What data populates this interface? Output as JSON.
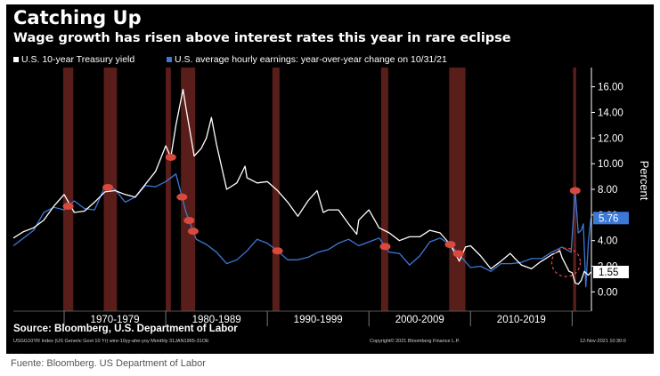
{
  "chart_data": {
    "type": "line",
    "title": "Catching Up",
    "subtitle": "Wage growth has risen above interest rates this year in rare eclipse",
    "ylabel": "Percent",
    "xlabel": "",
    "ylim": [
      -1.5,
      17.5
    ],
    "xlim": [
      1965.0,
      2021.9
    ],
    "y_ticks": [
      "16.00",
      "14.00",
      "12.00",
      "10.00",
      "8.00",
      "6.00",
      "4.00",
      "2.00",
      "0.00"
    ],
    "x_decade_labels": [
      "1970-1979",
      "1980-1989",
      "1990-1999",
      "2000-2009",
      "2010-2019"
    ],
    "grid": false,
    "legend_position": "top-left",
    "series": [
      {
        "name": "U.S. 10-year Treasury yield",
        "color": "#ffffff",
        "last_value_label": "1.55",
        "points": [
          [
            1965.0,
            4.2
          ],
          [
            1966.0,
            4.7
          ],
          [
            1967.0,
            5.0
          ],
          [
            1968.0,
            5.6
          ],
          [
            1969.0,
            6.7
          ],
          [
            1970.0,
            7.6
          ],
          [
            1971.0,
            6.2
          ],
          [
            1972.0,
            6.3
          ],
          [
            1973.0,
            7.0
          ],
          [
            1974.0,
            7.8
          ],
          [
            1975.0,
            7.9
          ],
          [
            1976.0,
            7.6
          ],
          [
            1977.0,
            7.4
          ],
          [
            1978.0,
            8.4
          ],
          [
            1979.0,
            9.4
          ],
          [
            1980.0,
            11.4
          ],
          [
            1980.5,
            10.5
          ],
          [
            1981.0,
            13.0
          ],
          [
            1981.7,
            15.8
          ],
          [
            1982.0,
            14.3
          ],
          [
            1982.8,
            10.6
          ],
          [
            1983.5,
            11.2
          ],
          [
            1984.0,
            12.0
          ],
          [
            1984.5,
            13.6
          ],
          [
            1985.0,
            11.5
          ],
          [
            1986.0,
            8.0
          ],
          [
            1987.0,
            8.5
          ],
          [
            1987.8,
            9.8
          ],
          [
            1988.0,
            8.9
          ],
          [
            1989.0,
            8.5
          ],
          [
            1990.0,
            8.6
          ],
          [
            1991.0,
            7.9
          ],
          [
            1992.0,
            7.0
          ],
          [
            1993.0,
            5.9
          ],
          [
            1994.0,
            7.1
          ],
          [
            1994.9,
            7.9
          ],
          [
            1995.5,
            6.2
          ],
          [
            1996.0,
            6.4
          ],
          [
            1997.0,
            6.4
          ],
          [
            1998.0,
            5.3
          ],
          [
            1998.8,
            4.5
          ],
          [
            1999.0,
            5.6
          ],
          [
            2000.0,
            6.4
          ],
          [
            2001.0,
            5.0
          ],
          [
            2002.0,
            4.6
          ],
          [
            2003.0,
            4.0
          ],
          [
            2004.0,
            4.3
          ],
          [
            2005.0,
            4.3
          ],
          [
            2006.0,
            4.8
          ],
          [
            2007.0,
            4.6
          ],
          [
            2008.0,
            3.7
          ],
          [
            2008.9,
            2.4
          ],
          [
            2009.5,
            3.5
          ],
          [
            2010.0,
            3.6
          ],
          [
            2011.0,
            2.8
          ],
          [
            2012.0,
            1.8
          ],
          [
            2013.0,
            2.4
          ],
          [
            2013.9,
            3.0
          ],
          [
            2014.5,
            2.5
          ],
          [
            2015.0,
            2.1
          ],
          [
            2016.0,
            1.8
          ],
          [
            2016.8,
            2.3
          ],
          [
            2017.0,
            2.4
          ],
          [
            2018.0,
            2.9
          ],
          [
            2018.8,
            3.2
          ],
          [
            2019.0,
            2.7
          ],
          [
            2019.7,
            1.6
          ],
          [
            2020.0,
            1.5
          ],
          [
            2020.3,
            0.7
          ],
          [
            2020.6,
            0.6
          ],
          [
            2020.9,
            0.9
          ],
          [
            2021.2,
            1.6
          ],
          [
            2021.6,
            1.3
          ],
          [
            2021.86,
            1.55
          ]
        ]
      },
      {
        "name": "U.S. average hourly earnings: year-over-year change on 10/31/21",
        "color": "#3c78d8",
        "last_value_label": "5.76",
        "points": [
          [
            1965.0,
            3.6
          ],
          [
            1966.0,
            4.2
          ],
          [
            1967.0,
            4.8
          ],
          [
            1968.0,
            6.2
          ],
          [
            1969.0,
            6.6
          ],
          [
            1970.0,
            6.4
          ],
          [
            1971.0,
            7.1
          ],
          [
            1972.0,
            6.5
          ],
          [
            1973.0,
            6.4
          ],
          [
            1974.0,
            8.2
          ],
          [
            1975.0,
            8.0
          ],
          [
            1976.0,
            7.0
          ],
          [
            1977.0,
            7.4
          ],
          [
            1978.0,
            8.3
          ],
          [
            1979.0,
            8.2
          ],
          [
            1980.0,
            8.6
          ],
          [
            1981.0,
            9.2
          ],
          [
            1982.0,
            6.2
          ],
          [
            1983.0,
            4.1
          ],
          [
            1984.0,
            3.7
          ],
          [
            1985.0,
            3.1
          ],
          [
            1986.0,
            2.2
          ],
          [
            1987.0,
            2.5
          ],
          [
            1988.0,
            3.2
          ],
          [
            1989.0,
            4.1
          ],
          [
            1990.0,
            3.8
          ],
          [
            1991.0,
            3.2
          ],
          [
            1992.0,
            2.5
          ],
          [
            1993.0,
            2.5
          ],
          [
            1994.0,
            2.7
          ],
          [
            1995.0,
            3.1
          ],
          [
            1996.0,
            3.3
          ],
          [
            1997.0,
            3.8
          ],
          [
            1998.0,
            4.1
          ],
          [
            1999.0,
            3.6
          ],
          [
            2000.0,
            3.9
          ],
          [
            2001.0,
            4.2
          ],
          [
            2002.0,
            3.1
          ],
          [
            2003.0,
            3.0
          ],
          [
            2004.0,
            2.1
          ],
          [
            2005.0,
            2.8
          ],
          [
            2006.0,
            3.9
          ],
          [
            2007.0,
            4.2
          ],
          [
            2008.0,
            3.7
          ],
          [
            2009.0,
            2.8
          ],
          [
            2010.0,
            1.9
          ],
          [
            2011.0,
            2.0
          ],
          [
            2012.0,
            1.6
          ],
          [
            2013.0,
            2.2
          ],
          [
            2014.0,
            2.2
          ],
          [
            2015.0,
            2.3
          ],
          [
            2016.0,
            2.6
          ],
          [
            2017.0,
            2.6
          ],
          [
            2018.0,
            3.1
          ],
          [
            2019.0,
            3.5
          ],
          [
            2019.9,
            3.1
          ],
          [
            2020.3,
            7.9
          ],
          [
            2020.6,
            4.6
          ],
          [
            2020.9,
            4.8
          ],
          [
            2021.1,
            5.3
          ],
          [
            2021.35,
            0.4
          ],
          [
            2021.6,
            3.9
          ],
          [
            2021.86,
            5.76
          ]
        ]
      }
    ],
    "recessions": [
      [
        1969.9,
        1970.9
      ],
      [
        1973.9,
        1975.2
      ],
      [
        1980.0,
        1980.5
      ],
      [
        1981.5,
        1982.9
      ],
      [
        1990.5,
        1991.2
      ],
      [
        2001.2,
        2001.9
      ],
      [
        2007.9,
        2009.5
      ],
      [
        2020.1,
        2020.4
      ]
    ]
  },
  "footer": {
    "source": "Source: Bloomberg, U.S. Department of Labor",
    "index_line": "USGG10YR Index (US Generic Govt 10 Yr) wire-10yy-ahe-yoy  Monthly 31JAN1965-31OE",
    "copyright": "Copyright© 2021 Bloomberg Finance L.P.",
    "date": "12-Nov-2021 10:30:0"
  },
  "caption": "Fuente: Bloomberg. US Department of Labor",
  "colors": {
    "background": "#000000",
    "treasury_line": "#ffffff",
    "earnings_line": "#3c78d8",
    "recession_band": "#5a1e1a",
    "marker": "#d94a3e"
  }
}
